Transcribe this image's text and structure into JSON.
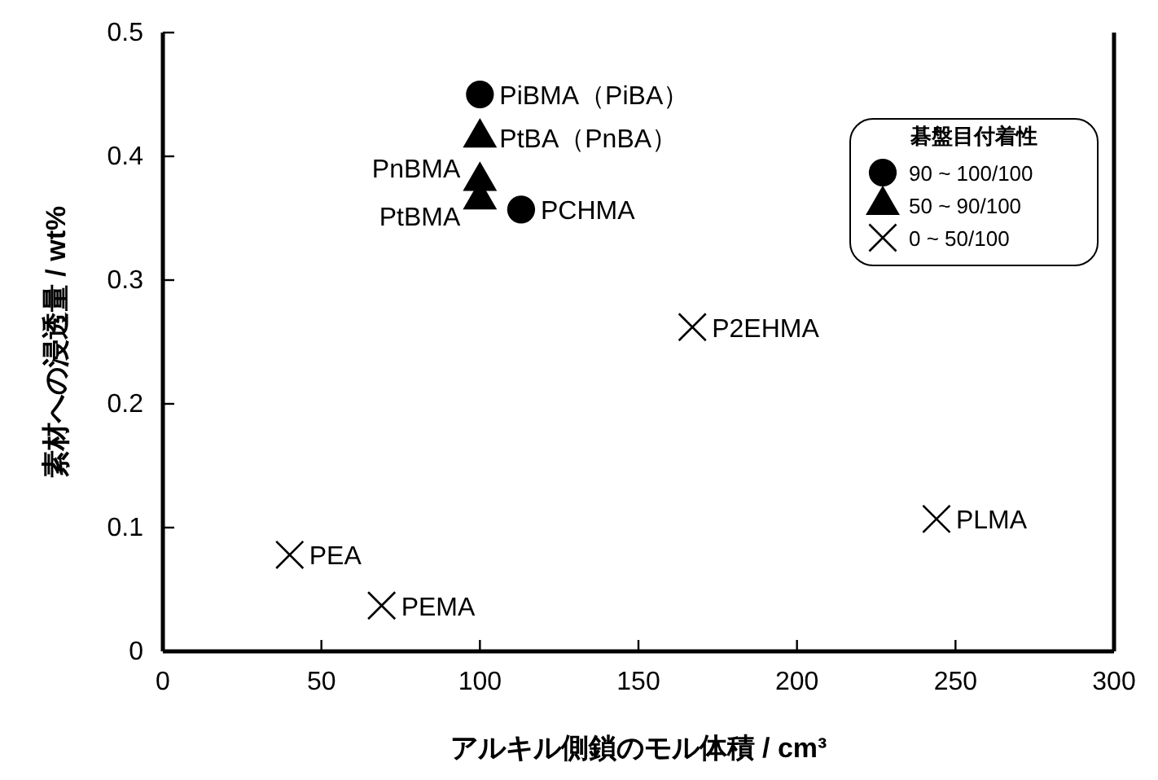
{
  "chart_data": {
    "type": "scatter",
    "xlabel": "アルキル側鎖のモル体積 / cm³",
    "ylabel": "素材への浸透量 / wt%",
    "legend_title": "碁盤目付着性",
    "legend": "top right",
    "grid": false,
    "xlim": [
      0,
      300
    ],
    "xticks": [
      0,
      50,
      100,
      150,
      200,
      250,
      300
    ],
    "ylim": [
      0,
      0.5
    ],
    "yticks": [
      0,
      0.1,
      0.2,
      0.3,
      0.4,
      0.5
    ],
    "series": [
      {
        "name": "90 ~ 100/100",
        "color": "#000000",
        "marker": "circle",
        "x": [
          100,
          113
        ],
        "values": [
          0.45,
          0.357
        ]
      },
      {
        "name": "50 ~ 90/100",
        "color": "#000000",
        "marker": "triangle",
        "x": [
          100,
          100,
          100
        ],
        "values": [
          0.415,
          0.38,
          0.365
        ]
      },
      {
        "name": "0 ~ 50/100",
        "color": "#000000",
        "marker": "cross",
        "x": [
          167,
          244,
          40,
          69
        ],
        "values": [
          0.262,
          0.107,
          0.078,
          0.037
        ]
      }
    ],
    "annotations": [
      {
        "text": "PiBMA（PiBA）",
        "x": 100,
        "y": 0.45
      },
      {
        "text": "PtBA（PnBA）",
        "x": 100,
        "y": 0.415
      },
      {
        "text": "PnBMA",
        "x": 100,
        "y": 0.38
      },
      {
        "text": "PtBMA",
        "x": 100,
        "y": 0.365
      },
      {
        "text": "PCHMA",
        "x": 113,
        "y": 0.357
      },
      {
        "text": "P2EHMA",
        "x": 167,
        "y": 0.262
      },
      {
        "text": "PLMA",
        "x": 244,
        "y": 0.107
      },
      {
        "text": "PEA",
        "x": 40,
        "y": 0.078
      },
      {
        "text": "PEMA",
        "x": 69,
        "y": 0.037
      }
    ]
  }
}
